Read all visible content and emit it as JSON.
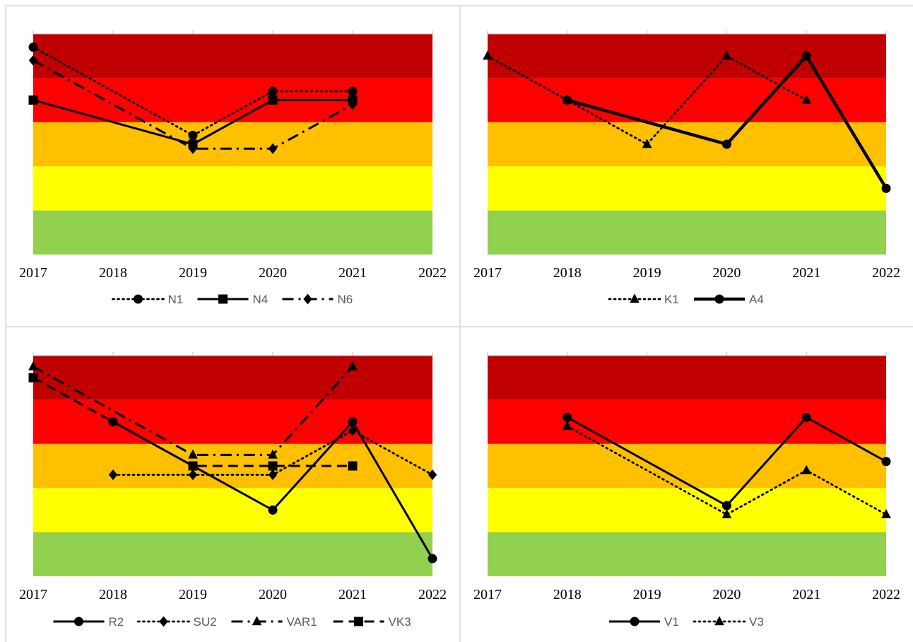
{
  "chart_data": [
    {
      "type": "line",
      "categories": [
        "2017",
        "2018",
        "2019",
        "2020",
        "2021",
        "2022"
      ],
      "ylim": [
        0,
        5
      ],
      "bands": [
        {
          "from": 0,
          "to": 1,
          "color": "#92d050"
        },
        {
          "from": 1,
          "to": 2,
          "color": "#ffff00"
        },
        {
          "from": 2,
          "to": 3,
          "color": "#ffc000"
        },
        {
          "from": 3,
          "to": 4,
          "color": "#ff0000"
        },
        {
          "from": 4,
          "to": 5,
          "color": "#c00000"
        }
      ],
      "series": [
        {
          "name": "N1",
          "x": [
            2017,
            2019,
            2020,
            2021
          ],
          "values": [
            4.7,
            2.7,
            3.7,
            3.7
          ],
          "line": "dotted",
          "marker": "circle"
        },
        {
          "name": "N4",
          "x": [
            2017,
            2019,
            2020,
            2021
          ],
          "values": [
            3.5,
            2.5,
            3.5,
            3.5
          ],
          "line": "solid",
          "marker": "square"
        },
        {
          "name": "N6",
          "x": [
            2017,
            2019,
            2020,
            2021
          ],
          "values": [
            4.4,
            2.4,
            2.4,
            3.4
          ],
          "line": "dashdot",
          "marker": "diamond"
        }
      ]
    },
    {
      "type": "line",
      "categories": [
        "2017",
        "2018",
        "2019",
        "2020",
        "2021",
        "2022"
      ],
      "ylim": [
        0,
        5
      ],
      "bands": [
        {
          "from": 0,
          "to": 1,
          "color": "#92d050"
        },
        {
          "from": 1,
          "to": 2,
          "color": "#ffff00"
        },
        {
          "from": 2,
          "to": 3,
          "color": "#ffc000"
        },
        {
          "from": 3,
          "to": 4,
          "color": "#ff0000"
        },
        {
          "from": 4,
          "to": 5,
          "color": "#c00000"
        }
      ],
      "series": [
        {
          "name": "K1",
          "x": [
            2017,
            2018,
            2019,
            2020,
            2021
          ],
          "values": [
            4.5,
            3.5,
            2.5,
            4.5,
            3.5
          ],
          "line": "dotted",
          "marker": "triangle"
        },
        {
          "name": "A4",
          "x": [
            2018,
            2020,
            2021,
            2022
          ],
          "values": [
            3.5,
            2.5,
            4.5,
            1.5
          ],
          "line": "thick",
          "marker": "circle"
        }
      ]
    },
    {
      "type": "line",
      "categories": [
        "2017",
        "2018",
        "2019",
        "2020",
        "2021",
        "2022"
      ],
      "ylim": [
        0,
        5
      ],
      "bands": [
        {
          "from": 0,
          "to": 1,
          "color": "#92d050"
        },
        {
          "from": 1,
          "to": 2,
          "color": "#ffff00"
        },
        {
          "from": 2,
          "to": 3,
          "color": "#ffc000"
        },
        {
          "from": 3,
          "to": 4,
          "color": "#ff0000"
        },
        {
          "from": 4,
          "to": 5,
          "color": "#c00000"
        }
      ],
      "series": [
        {
          "name": "R2",
          "x": [
            2018,
            2019,
            2020,
            2021,
            2022
          ],
          "values": [
            3.5,
            2.5,
            1.5,
            3.5,
            0.4
          ],
          "line": "solid",
          "marker": "circle"
        },
        {
          "name": "SU2",
          "x": [
            2018,
            2019,
            2020,
            2021,
            2022
          ],
          "values": [
            2.3,
            2.3,
            2.3,
            3.3,
            2.3
          ],
          "line": "dotted",
          "marker": "diamond"
        },
        {
          "name": "VAR1",
          "x": [
            2017,
            2019,
            2020,
            2021
          ],
          "values": [
            4.75,
            2.75,
            2.75,
            4.75
          ],
          "line": "dashdot",
          "marker": "triangle"
        },
        {
          "name": "VK3",
          "x": [
            2017,
            2019,
            2020,
            2021
          ],
          "values": [
            4.5,
            2.5,
            2.5,
            2.5
          ],
          "line": "dashed",
          "marker": "square"
        }
      ]
    },
    {
      "type": "line",
      "categories": [
        "2017",
        "2018",
        "2019",
        "2020",
        "2021",
        "2022"
      ],
      "ylim": [
        0,
        5
      ],
      "bands": [
        {
          "from": 0,
          "to": 1,
          "color": "#92d050"
        },
        {
          "from": 1,
          "to": 2,
          "color": "#ffff00"
        },
        {
          "from": 2,
          "to": 3,
          "color": "#ffc000"
        },
        {
          "from": 3,
          "to": 4,
          "color": "#ff0000"
        },
        {
          "from": 4,
          "to": 5,
          "color": "#c00000"
        }
      ],
      "series": [
        {
          "name": "V1",
          "x": [
            2018,
            2020,
            2021,
            2022
          ],
          "values": [
            3.6,
            1.6,
            3.6,
            2.6
          ],
          "line": "solid",
          "marker": "circle"
        },
        {
          "name": "V3",
          "x": [
            2018,
            2020,
            2021,
            2022
          ],
          "values": [
            3.4,
            1.4,
            2.4,
            1.4
          ],
          "line": "dotted",
          "marker": "triangle"
        }
      ]
    }
  ]
}
